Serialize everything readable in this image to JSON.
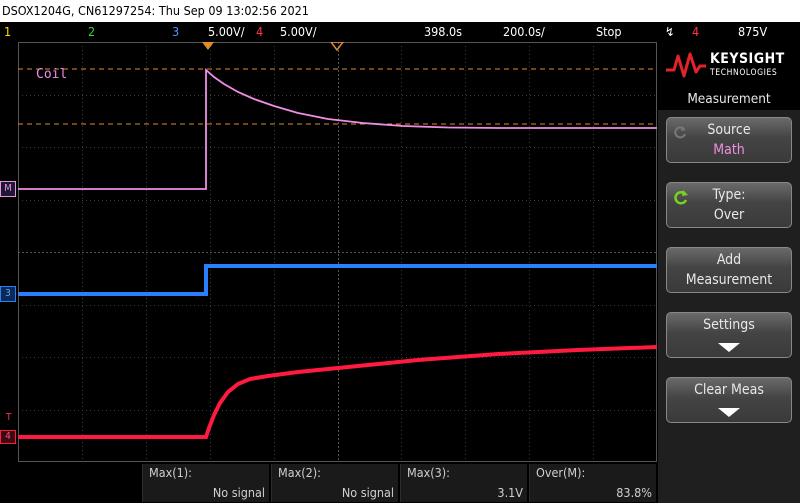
{
  "title_bar": "DSOX1204G, CN61297254: Thu Sep 09 13:02:56 2021",
  "status": {
    "ch1": "1",
    "ch2": "2",
    "ch3_num": "3",
    "ch3_scale": "5.00V/",
    "ch4_num": "4",
    "ch4_scale": "5.00V/",
    "time_position": "398.0s",
    "time_scale": "200.0s/",
    "run_state": "Stop",
    "trig_source": "4",
    "trig_level": "875V"
  },
  "waveform_labels": {
    "math_label": "Coil",
    "math_marker": "M",
    "ch3_marker": "3",
    "ch4_marker": "4",
    "trigger_marker": "T"
  },
  "measurements": [
    {
      "label": "Max(1):",
      "value": "No signal"
    },
    {
      "label": "Max(2):",
      "value": "No signal"
    },
    {
      "label": "Max(3):",
      "value": "3.1V"
    },
    {
      "label": "Over(M):",
      "value": "83.8%"
    }
  ],
  "brand": {
    "name": "KEYSIGHT",
    "sub": "TECHNOLOGIES"
  },
  "menu": {
    "title": "Measurement",
    "softkeys": [
      {
        "line1": "Source",
        "line2": "Math"
      },
      {
        "line1": "Type:",
        "line2": "Over"
      },
      {
        "line1": "Add",
        "line2": "Measurement"
      },
      {
        "line1": "Settings",
        "line2": ""
      },
      {
        "line1": "Clear Meas",
        "line2": ""
      }
    ]
  },
  "colors": {
    "ch1": "#f0e000",
    "ch2": "#40d040",
    "ch3": "#2a7fff",
    "ch4": "#ff1a40",
    "math": "#f08ee6",
    "accent": "#e2232a"
  }
}
